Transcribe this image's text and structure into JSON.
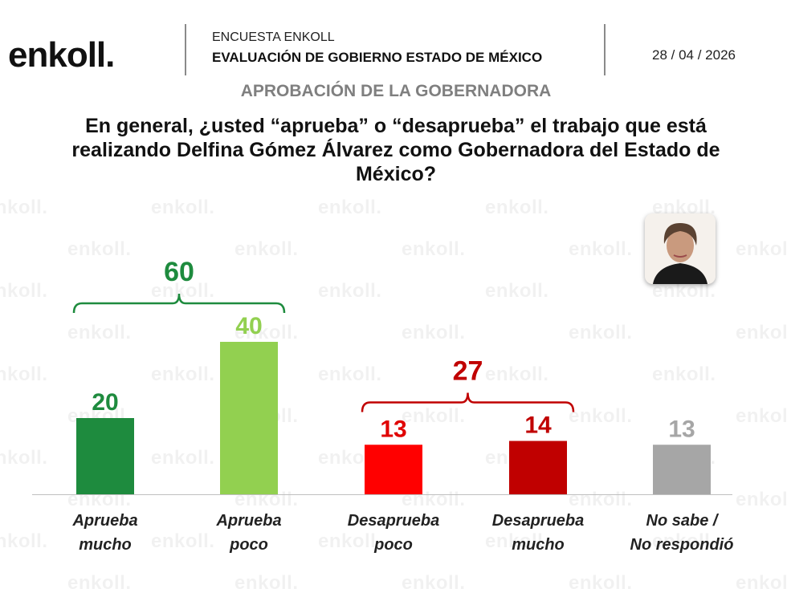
{
  "header": {
    "logo_text": "enkoll.",
    "survey_label": "ENCUESTA ENKOLL",
    "survey_title": "EVALUACIÓN DE GOBIERNO ESTADO DE MÉXICO",
    "date": "28 / 04 / 2026"
  },
  "watermark_text": "enkoll.",
  "subtitle": "APROBACIÓN DE LA GOBERNADORA",
  "question": "En general, ¿usted “aprueba” o “desaprueba” el trabajo que está realizando Delfina Gómez Álvarez como Gobernadora del Estado de México?",
  "chart_data": {
    "type": "bar",
    "title": "APROBACIÓN DE LA GOBERNADORA",
    "categories": [
      [
        "Aprueba",
        "mucho"
      ],
      [
        "Aprueba",
        "poco"
      ],
      [
        "Desaprueba",
        "poco"
      ],
      [
        "Desaprueba",
        "mucho"
      ],
      [
        "No sabe /",
        "No respondió"
      ]
    ],
    "values": [
      20,
      40,
      13,
      14,
      13
    ],
    "colors": [
      "#1e8b3e",
      "#92d050",
      "#ff0000",
      "#c00000",
      "#a6a6a6"
    ],
    "label_colors": [
      "#1e8b3e",
      "#92d050",
      "#e00000",
      "#c00000",
      "#a6a6a6"
    ],
    "groups": [
      {
        "label": "60",
        "value": 60,
        "from": 0,
        "to": 1,
        "color": "#1e8b3e"
      },
      {
        "label": "27",
        "value": 27,
        "from": 2,
        "to": 3,
        "color": "#c00000"
      }
    ],
    "ylim": [
      0,
      45
    ],
    "grid": false,
    "xlabel": "",
    "ylabel": ""
  }
}
